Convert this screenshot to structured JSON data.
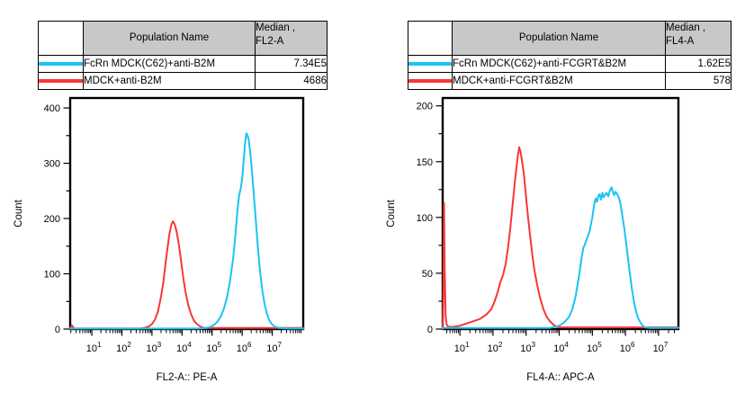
{
  "colors": {
    "cyan": "#1CC3F3",
    "red": "#F93636",
    "table_header_bg": "#C8C8C8",
    "axis": "#000000"
  },
  "panels": [
    {
      "table": {
        "header": {
          "population": "Population Name",
          "median_line1": "Median ,",
          "median_line2": "FL2-A"
        },
        "rows": [
          {
            "name": "FcRn MDCK(C62)+anti-B2M",
            "value": "7.34E5",
            "color": "#1CC3F3"
          },
          {
            "name": "MDCK+anti-B2M",
            "value": "4686",
            "color": "#F93636"
          }
        ]
      }
    },
    {
      "table": {
        "header": {
          "population": "Population Name",
          "median_line1": "Median ,",
          "median_line2": "FL4-A"
        },
        "rows": [
          {
            "name": "FcRn MDCK(C62)+anti-FCGRT&B2M",
            "value": "1.62E5",
            "color": "#1CC3F3"
          },
          {
            "name": "MDCK+anti-FCGRT&B2M",
            "value": "578",
            "color": "#F93636"
          }
        ]
      }
    }
  ],
  "chart_data": [
    {
      "type": "line",
      "subtype": "flow-histogram",
      "xlabel": "FL2-A:: PE-A",
      "ylabel": "Count",
      "x_scale": "log10",
      "x_range_dex": [
        0.28,
        8.03
      ],
      "x_major_tick_decades": [
        1,
        2,
        3,
        4,
        5,
        6,
        7
      ],
      "ylim": [
        0,
        418
      ],
      "y_major_step": 100,
      "y_minor_step": 50,
      "y_tick_labels": [
        0,
        100,
        200,
        300,
        400
      ],
      "grid": false,
      "legend_position": "table-above",
      "series": [
        {
          "name": "FcRn MDCK(C62)+anti-B2M",
          "color": "#1CC3F3",
          "median": "7.34E5",
          "points_dex_count": [
            [
              0.28,
              1
            ],
            [
              2.0,
              1
            ],
            [
              4.0,
              1
            ],
            [
              4.6,
              1
            ],
            [
              4.8,
              2
            ],
            [
              4.95,
              4
            ],
            [
              5.1,
              9
            ],
            [
              5.2,
              15
            ],
            [
              5.3,
              24
            ],
            [
              5.4,
              38
            ],
            [
              5.5,
              58
            ],
            [
              5.6,
              88
            ],
            [
              5.7,
              128
            ],
            [
              5.75,
              155
            ],
            [
              5.8,
              188
            ],
            [
              5.85,
              218
            ],
            [
              5.9,
              242
            ],
            [
              5.95,
              254
            ],
            [
              6.0,
              272
            ],
            [
              6.05,
              305
            ],
            [
              6.1,
              338
            ],
            [
              6.14,
              354
            ],
            [
              6.17,
              352
            ],
            [
              6.22,
              342
            ],
            [
              6.27,
              318
            ],
            [
              6.32,
              288
            ],
            [
              6.37,
              255
            ],
            [
              6.42,
              220
            ],
            [
              6.47,
              185
            ],
            [
              6.52,
              150
            ],
            [
              6.57,
              118
            ],
            [
              6.62,
              92
            ],
            [
              6.68,
              66
            ],
            [
              6.75,
              44
            ],
            [
              6.82,
              28
            ],
            [
              6.9,
              16
            ],
            [
              7.0,
              8
            ],
            [
              7.1,
              4
            ],
            [
              7.25,
              2
            ],
            [
              7.45,
              1
            ],
            [
              8.03,
              1
            ]
          ]
        },
        {
          "name": "MDCK+anti-B2M",
          "color": "#F93636",
          "median": "4686",
          "points_dex_count": [
            [
              0.28,
              0
            ],
            [
              0.3,
              3
            ],
            [
              0.33,
              7
            ],
            [
              0.37,
              4
            ],
            [
              0.42,
              1
            ],
            [
              0.8,
              1
            ],
            [
              1.5,
              1
            ],
            [
              2.3,
              1
            ],
            [
              2.6,
              1
            ],
            [
              2.75,
              2
            ],
            [
              2.9,
              5
            ],
            [
              3.0,
              9
            ],
            [
              3.1,
              17
            ],
            [
              3.2,
              32
            ],
            [
              3.3,
              58
            ],
            [
              3.38,
              85
            ],
            [
              3.45,
              118
            ],
            [
              3.52,
              148
            ],
            [
              3.58,
              172
            ],
            [
              3.64,
              188
            ],
            [
              3.7,
              195
            ],
            [
              3.76,
              189
            ],
            [
              3.82,
              176
            ],
            [
              3.88,
              158
            ],
            [
              3.94,
              135
            ],
            [
              4.0,
              110
            ],
            [
              4.06,
              86
            ],
            [
              4.12,
              66
            ],
            [
              4.2,
              45
            ],
            [
              4.3,
              27
            ],
            [
              4.4,
              15
            ],
            [
              4.5,
              9
            ],
            [
              4.62,
              4
            ],
            [
              4.75,
              2
            ],
            [
              5.0,
              2
            ],
            [
              6.0,
              2
            ],
            [
              7.0,
              2
            ],
            [
              8.03,
              2
            ]
          ]
        }
      ]
    },
    {
      "type": "line",
      "subtype": "flow-histogram",
      "xlabel": "FL4-A:: APC-A",
      "ylabel": "Count",
      "x_scale": "log10",
      "x_range_dex": [
        0.48,
        7.6
      ],
      "x_major_tick_decades": [
        1,
        2,
        3,
        4,
        5,
        6,
        7
      ],
      "ylim": [
        0,
        207
      ],
      "y_major_step": 50,
      "y_minor_step": 25,
      "y_tick_labels": [
        0,
        50,
        100,
        150,
        200
      ],
      "grid": false,
      "legend_position": "table-above",
      "series": [
        {
          "name": "FcRn MDCK(C62)+anti-FCGRT&B2M",
          "color": "#1CC3F3",
          "median": "1.62E5",
          "points_dex_count": [
            [
              0.48,
              1
            ],
            [
              1.5,
              1
            ],
            [
              3.0,
              1
            ],
            [
              3.7,
              1
            ],
            [
              3.85,
              2
            ],
            [
              4.0,
              3
            ],
            [
              4.15,
              6
            ],
            [
              4.3,
              11
            ],
            [
              4.4,
              18
            ],
            [
              4.5,
              30
            ],
            [
              4.6,
              48
            ],
            [
              4.68,
              65
            ],
            [
              4.73,
              73
            ],
            [
              4.78,
              76
            ],
            [
              4.85,
              82
            ],
            [
              4.92,
              88
            ],
            [
              5.0,
              100
            ],
            [
              5.06,
              112
            ],
            [
              5.1,
              117
            ],
            [
              5.14,
              114
            ],
            [
              5.18,
              119
            ],
            [
              5.22,
              121
            ],
            [
              5.26,
              116
            ],
            [
              5.3,
              122
            ],
            [
              5.34,
              118
            ],
            [
              5.38,
              120
            ],
            [
              5.43,
              122
            ],
            [
              5.48,
              119
            ],
            [
              5.53,
              124
            ],
            [
              5.58,
              127
            ],
            [
              5.62,
              123
            ],
            [
              5.66,
              120
            ],
            [
              5.7,
              123
            ],
            [
              5.75,
              121
            ],
            [
              5.8,
              118
            ],
            [
              5.85,
              112
            ],
            [
              5.9,
              103
            ],
            [
              5.96,
              91
            ],
            [
              6.02,
              77
            ],
            [
              6.08,
              62
            ],
            [
              6.14,
              48
            ],
            [
              6.2,
              35
            ],
            [
              6.26,
              24
            ],
            [
              6.32,
              16
            ],
            [
              6.38,
              10
            ],
            [
              6.45,
              6
            ],
            [
              6.52,
              3
            ],
            [
              6.6,
              1.5
            ],
            [
              6.75,
              1
            ],
            [
              7.6,
              1
            ]
          ]
        },
        {
          "name": "MDCK+anti-FCGRT&B2M",
          "color": "#F93636",
          "median": "578",
          "points_dex_count": [
            [
              0.48,
              0
            ],
            [
              0.5,
              25
            ],
            [
              0.52,
              113
            ],
            [
              0.54,
              55
            ],
            [
              0.57,
              12
            ],
            [
              0.6,
              4
            ],
            [
              0.65,
              2
            ],
            [
              0.8,
              2
            ],
            [
              1.0,
              3
            ],
            [
              1.2,
              5
            ],
            [
              1.4,
              7
            ],
            [
              1.6,
              9
            ],
            [
              1.8,
              13
            ],
            [
              1.95,
              18
            ],
            [
              2.05,
              25
            ],
            [
              2.15,
              34
            ],
            [
              2.22,
              42
            ],
            [
              2.3,
              48
            ],
            [
              2.38,
              58
            ],
            [
              2.45,
              72
            ],
            [
              2.52,
              90
            ],
            [
              2.58,
              108
            ],
            [
              2.64,
              126
            ],
            [
              2.7,
              143
            ],
            [
              2.75,
              155
            ],
            [
              2.79,
              163
            ],
            [
              2.83,
              159
            ],
            [
              2.88,
              150
            ],
            [
              2.94,
              137
            ],
            [
              3.0,
              118
            ],
            [
              3.06,
              100
            ],
            [
              3.12,
              84
            ],
            [
              3.18,
              68
            ],
            [
              3.25,
              53
            ],
            [
              3.33,
              40
            ],
            [
              3.42,
              28
            ],
            [
              3.52,
              18
            ],
            [
              3.62,
              11
            ],
            [
              3.72,
              7
            ],
            [
              3.82,
              4
            ],
            [
              3.92,
              2
            ],
            [
              4.05,
              1.5
            ],
            [
              4.5,
              1.5
            ],
            [
              5.5,
              1.5
            ],
            [
              6.5,
              1.5
            ],
            [
              7.6,
              1.5
            ]
          ]
        }
      ]
    }
  ]
}
